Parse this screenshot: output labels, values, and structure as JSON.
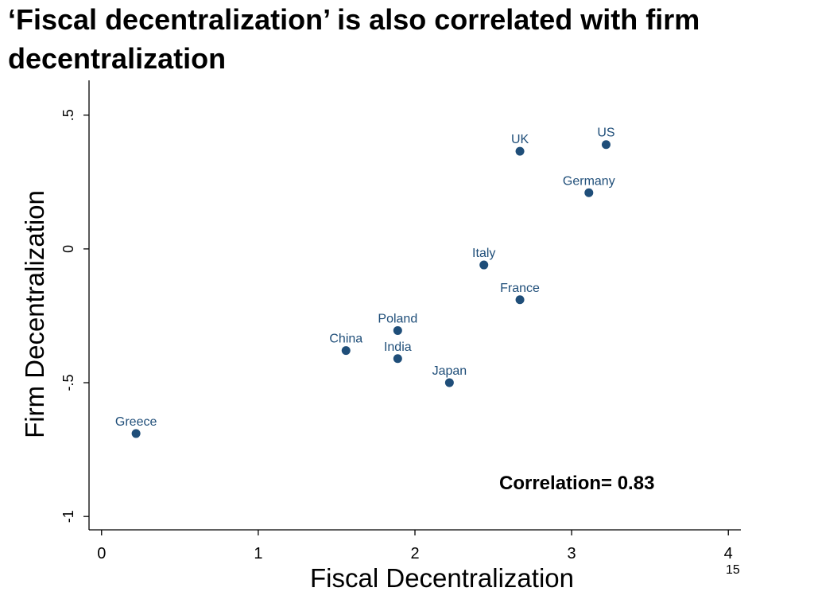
{
  "slide": {
    "title": "‘Fiscal decentralization’ is also correlated with firm decentralization",
    "page_number": "15"
  },
  "chart_data": {
    "type": "scatter",
    "title": "‘Fiscal decentralization’ is also correlated with firm decentralization",
    "xlabel": "Fiscal Decentralization",
    "ylabel": "Firm Decentralization",
    "xlim": [
      -0.08,
      4.08
    ],
    "ylim": [
      -1.05,
      0.63
    ],
    "x_ticks": [
      {
        "value": 0,
        "label": "0"
      },
      {
        "value": 1,
        "label": "1"
      },
      {
        "value": 2,
        "label": "2"
      },
      {
        "value": 3,
        "label": "3"
      },
      {
        "value": 4,
        "label": "4"
      }
    ],
    "y_ticks": [
      {
        "value": 0.5,
        "label": ".5"
      },
      {
        "value": 0,
        "label": "0"
      },
      {
        "value": -0.5,
        "label": "-.5"
      },
      {
        "value": -1,
        "label": "-1"
      }
    ],
    "points": [
      {
        "label": "US",
        "x": 3.22,
        "y": 0.39
      },
      {
        "label": "UK",
        "x": 2.67,
        "y": 0.365
      },
      {
        "label": "Germany",
        "x": 3.11,
        "y": 0.21
      },
      {
        "label": "Italy",
        "x": 2.44,
        "y": -0.06
      },
      {
        "label": "France",
        "x": 2.67,
        "y": -0.19
      },
      {
        "label": "Poland",
        "x": 1.89,
        "y": -0.305
      },
      {
        "label": "China",
        "x": 1.56,
        "y": -0.38
      },
      {
        "label": "India",
        "x": 1.89,
        "y": -0.41
      },
      {
        "label": "Japan",
        "x": 2.22,
        "y": -0.5
      },
      {
        "label": "Greece",
        "x": 0.22,
        "y": -0.69
      }
    ],
    "annotation": "Correlation= 0.83",
    "marker_color": "#1f4e79",
    "label_color": "#1f4e79",
    "grid": false
  }
}
